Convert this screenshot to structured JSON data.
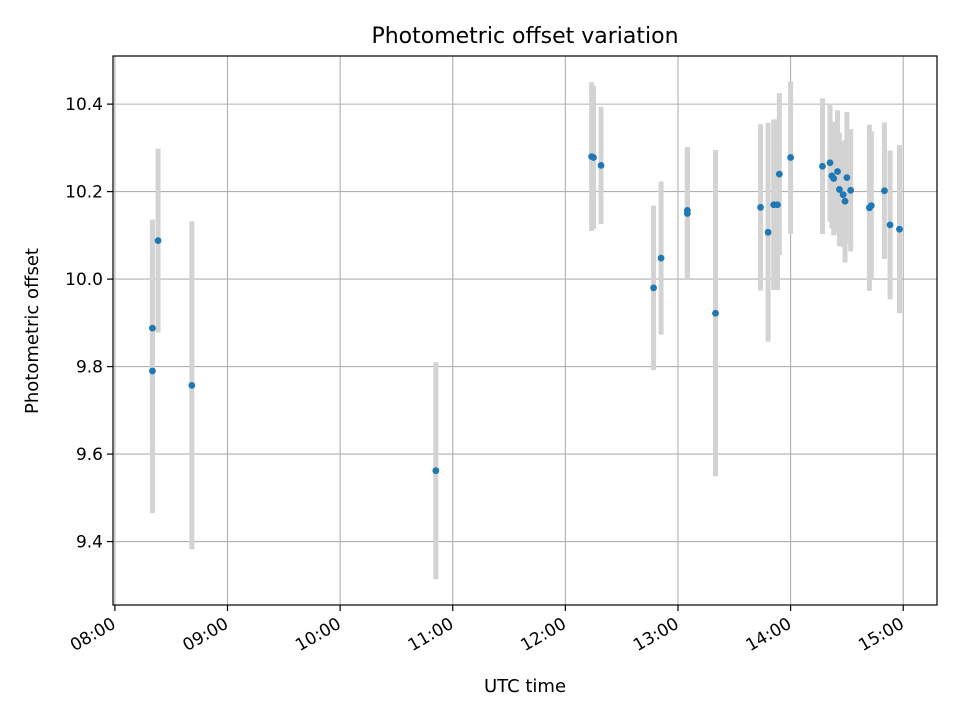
{
  "chart_data": {
    "type": "scatter",
    "title": "Photometric offset variation",
    "xlabel": "UTC time",
    "ylabel": "Photometric offset",
    "grid": true,
    "x_unit": "time of day (UTC)",
    "xlim": [
      "07:59",
      "15:18"
    ],
    "ylim": [
      9.255,
      10.51
    ],
    "x_ticks": [
      "08:00",
      "09:00",
      "10:00",
      "11:00",
      "12:00",
      "13:00",
      "14:00",
      "15:00"
    ],
    "y_ticks": [
      "9.4",
      "9.6",
      "9.8",
      "10.0",
      "10.2",
      "10.4"
    ],
    "y_tick_values": [
      9.4,
      9.6,
      9.8,
      10.0,
      10.2,
      10.4
    ],
    "colors": {
      "points": "#1f77b4",
      "errorbars": "#d3d3d3",
      "grid": "#b0b0b0"
    },
    "points": [
      {
        "x": "08:20",
        "y": 9.79,
        "err": 0.325
      },
      {
        "x": "08:20",
        "y": 9.888,
        "err": 0.248
      },
      {
        "x": "08:23",
        "y": 10.088,
        "err": 0.21
      },
      {
        "x": "08:41",
        "y": 9.757,
        "err": 0.375
      },
      {
        "x": "10:51",
        "y": 9.562,
        "err": 0.248
      },
      {
        "x": "12:14",
        "y": 10.28,
        "err": 0.17
      },
      {
        "x": "12:15",
        "y": 10.278,
        "err": 0.163
      },
      {
        "x": "12:19",
        "y": 10.26,
        "err": 0.134
      },
      {
        "x": "12:47",
        "y": 9.98,
        "err": 0.188
      },
      {
        "x": "12:51",
        "y": 10.048,
        "err": 0.175
      },
      {
        "x": "13:05",
        "y": 10.15,
        "err": 0.15
      },
      {
        "x": "13:05",
        "y": 10.157,
        "err": 0.145
      },
      {
        "x": "13:20",
        "y": 9.922,
        "err": 0.373
      },
      {
        "x": "13:44",
        "y": 10.164,
        "err": 0.19
      },
      {
        "x": "13:48",
        "y": 10.107,
        "err": 0.25
      },
      {
        "x": "13:51",
        "y": 10.17,
        "err": 0.195
      },
      {
        "x": "13:53",
        "y": 10.17,
        "err": 0.195
      },
      {
        "x": "13:54",
        "y": 10.24,
        "err": 0.185
      },
      {
        "x": "14:00",
        "y": 10.278,
        "err": 0.174
      },
      {
        "x": "14:17",
        "y": 10.258,
        "err": 0.155
      },
      {
        "x": "14:21",
        "y": 10.266,
        "err": 0.135
      },
      {
        "x": "14:22",
        "y": 10.236,
        "err": 0.12
      },
      {
        "x": "14:23",
        "y": 10.23,
        "err": 0.13
      },
      {
        "x": "14:25",
        "y": 10.246,
        "err": 0.14
      },
      {
        "x": "14:26",
        "y": 10.205,
        "err": 0.13
      },
      {
        "x": "14:28",
        "y": 10.193,
        "err": 0.12
      },
      {
        "x": "14:29",
        "y": 10.178,
        "err": 0.14
      },
      {
        "x": "14:30",
        "y": 10.232,
        "err": 0.15
      },
      {
        "x": "14:32",
        "y": 10.203,
        "err": 0.14
      },
      {
        "x": "14:42",
        "y": 10.163,
        "err": 0.19
      },
      {
        "x": "14:43",
        "y": 10.168,
        "err": 0.17
      },
      {
        "x": "14:50",
        "y": 10.202,
        "err": 0.156
      },
      {
        "x": "14:53",
        "y": 10.124,
        "err": 0.17
      },
      {
        "x": "14:58",
        "y": 10.114,
        "err": 0.192
      }
    ]
  }
}
